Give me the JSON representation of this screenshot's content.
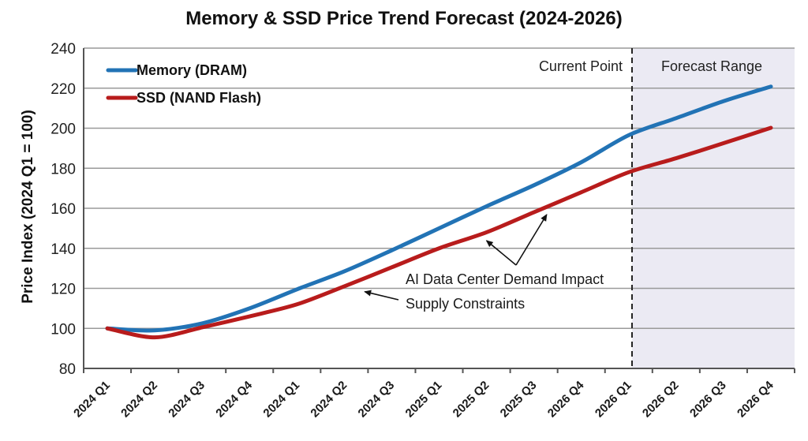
{
  "chart_data": {
    "type": "line",
    "title": "Memory & SSD Price Trend Forecast (2024-2026)",
    "xlabel": "",
    "ylabel": "Price Index (2024 Q1 = 100)",
    "ylim": [
      80,
      240
    ],
    "yticks": [
      80,
      100,
      120,
      140,
      160,
      180,
      200,
      220,
      240
    ],
    "grid": true,
    "legend_position": "top-left",
    "categories": [
      "2024 Q1",
      "2024 Q2",
      "2024 Q3",
      "2024 Q4",
      "2024 Q1",
      "2024 Q2",
      "2024 Q3",
      "2025 Q1",
      "2025 Q2",
      "2025 Q3",
      "2026 Q4",
      "2026 Q1",
      "2026 Q2",
      "2026 Q3",
      "2026 Q4"
    ],
    "series": [
      {
        "name": "Memory (DRAM)",
        "color": "#2273b5",
        "values": [
          100,
          99,
          102.5,
          110,
          119.5,
          128.5,
          139,
          150,
          161,
          171.5,
          183,
          196.5,
          205,
          213.5,
          220.8
        ]
      },
      {
        "name": "SSD (NAND Flash)",
        "color": "#b81c1c",
        "values": [
          100,
          95.5,
          100.5,
          106,
          112,
          121,
          130.5,
          140,
          148,
          158,
          168,
          178,
          185,
          192.5,
          200.2
        ]
      }
    ],
    "regions": {
      "current_label": "Current Point",
      "forecast_label": "Forecast Range",
      "forecast_start_index": 11.07,
      "forecast_fill": "#ebeaf3"
    },
    "annotations": [
      {
        "text": "AI Data Center Demand Impact",
        "targets": [
          {
            "category_index": 8,
            "value": 147
          },
          {
            "category_index": 9.27,
            "value": 160
          }
        ]
      },
      {
        "text": "Supply Constraints",
        "targets": [
          {
            "category_index": 5.43,
            "value": 121.5
          }
        ]
      }
    ]
  }
}
